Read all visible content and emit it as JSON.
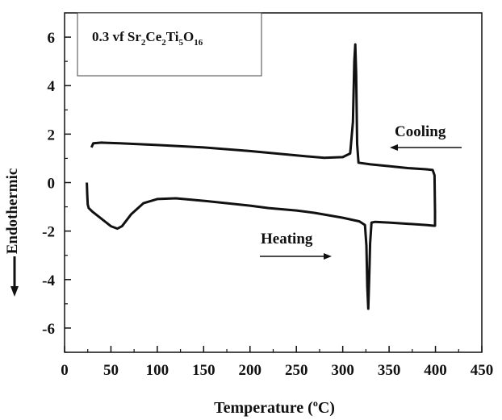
{
  "chart_data": {
    "type": "line",
    "title": "",
    "legend_box": {
      "prefix": "0.3 vf Sr",
      "sub1": "2",
      "part2": "Ce",
      "sub2": "2",
      "part3": "Ti",
      "sub3": "5",
      "part4": "O",
      "sub4": "16"
    },
    "xlabel": {
      "main": "Temperature (",
      "sup": "o",
      "end": "C)"
    },
    "ylabel": "Endothermic",
    "xlim": [
      0,
      450
    ],
    "ylim": [
      -7,
      7
    ],
    "xticks": [
      0,
      50,
      100,
      150,
      200,
      250,
      300,
      350,
      400,
      450
    ],
    "yticks": [
      -6,
      -4,
      -2,
      0,
      2,
      4,
      6
    ],
    "annotations": [
      {
        "text": "Cooling",
        "arrow_direction": "left"
      },
      {
        "text": "Heating",
        "arrow_direction": "right"
      }
    ],
    "series": [
      {
        "points": [
          [
            29,
            1.45
          ],
          [
            31,
            1.62
          ],
          [
            40,
            1.65
          ],
          [
            60,
            1.62
          ],
          [
            100,
            1.55
          ],
          [
            150,
            1.45
          ],
          [
            200,
            1.3
          ],
          [
            250,
            1.12
          ],
          [
            280,
            1.02
          ],
          [
            300,
            1.05
          ],
          [
            308,
            1.2
          ],
          [
            311,
            2.5
          ],
          [
            312.5,
            5.0
          ],
          [
            313.5,
            5.7
          ],
          [
            314.5,
            4.5
          ],
          [
            315.5,
            1.6
          ],
          [
            317,
            0.82
          ],
          [
            330,
            0.75
          ],
          [
            350,
            0.68
          ],
          [
            370,
            0.6
          ],
          [
            390,
            0.55
          ],
          [
            397,
            0.52
          ],
          [
            399,
            0.3
          ],
          [
            399.5,
            -1.2
          ],
          [
            399.5,
            -1.78
          ],
          [
            398,
            -1.78
          ],
          [
            390,
            -1.75
          ],
          [
            370,
            -1.7
          ],
          [
            350,
            -1.65
          ],
          [
            335,
            -1.62
          ],
          [
            331,
            -1.65
          ],
          [
            329.5,
            -2.5
          ],
          [
            328.5,
            -4.0
          ],
          [
            327.5,
            -5.2
          ],
          [
            326.5,
            -4.3
          ],
          [
            325.5,
            -2.6
          ],
          [
            324,
            -1.75
          ],
          [
            318,
            -1.6
          ],
          [
            300,
            -1.45
          ],
          [
            270,
            -1.25
          ],
          [
            250,
            -1.15
          ],
          [
            220,
            -1.05
          ],
          [
            200,
            -0.95
          ],
          [
            150,
            -0.75
          ],
          [
            120,
            -0.65
          ],
          [
            100,
            -0.68
          ],
          [
            85,
            -0.85
          ],
          [
            72,
            -1.3
          ],
          [
            62,
            -1.8
          ],
          [
            57,
            -1.9
          ],
          [
            50,
            -1.8
          ],
          [
            40,
            -1.5
          ],
          [
            30,
            -1.2
          ],
          [
            26,
            -1.05
          ],
          [
            25,
            -0.9
          ],
          [
            24.5,
            -0.5
          ],
          [
            24,
            0.0
          ]
        ]
      }
    ]
  }
}
